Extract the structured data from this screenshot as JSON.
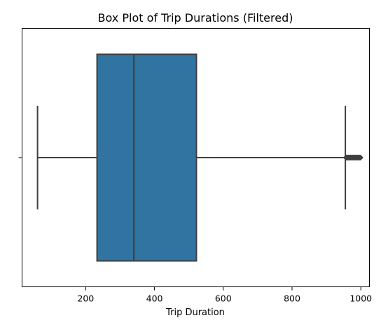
{
  "chart_data": {
    "type": "box",
    "orientation": "horizontal",
    "title": "Box Plot of Trip Durations (Filtered)",
    "xlabel": "Trip Duration",
    "ylabel": "",
    "xlim": [
      15,
      1025
    ],
    "xticks": [
      200,
      400,
      600,
      800,
      1000
    ],
    "box": {
      "whisker_low": 60,
      "q1": 233,
      "median": 340,
      "q3": 522,
      "whisker_high": 955,
      "outliers_range": [
        957,
        1000
      ]
    },
    "grid": false,
    "colors": {
      "box_fill": "#3274a1",
      "line": "#3f3f3f"
    }
  }
}
